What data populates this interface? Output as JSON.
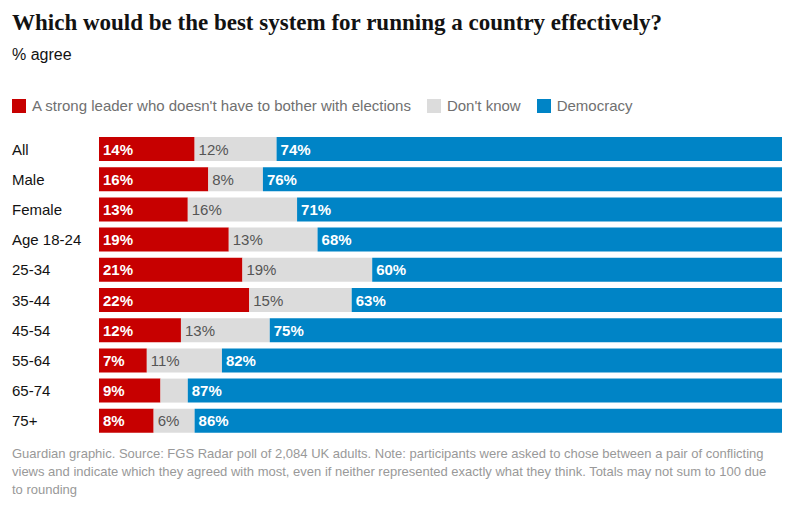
{
  "chart_data": {
    "type": "bar",
    "title": "Which would be the best system for running a country effectively?",
    "subtitle": "% agree",
    "caption": "Guardian graphic. Source: FGS Radar poll of 2,084 UK adults. Note: participants were asked to chose between a pair of conflicting views and indicate which they agreed with most, even if neither represented exactly what they think. Totals may not sum to 100 due to rounding",
    "orientation": "horizontal",
    "stacked": true,
    "data_labels": true,
    "tick_labels": "y",
    "grid": false,
    "legend": "top-left",
    "categories": [
      "All",
      "Male",
      "Female",
      "Age 18-24",
      "25-34",
      "35-44",
      "45-54",
      "55-64",
      "65-74",
      "75+"
    ],
    "series": [
      {
        "name": "A strong leader who doesn't have to bother with elections",
        "color": "#c70000",
        "values": [
          14,
          16,
          13,
          19,
          21,
          22,
          12,
          7,
          9,
          8
        ],
        "value_labels": [
          "14%",
          "16%",
          "13%",
          "19%",
          "21%",
          "22%",
          "12%",
          "7%",
          "9%",
          "8%"
        ]
      },
      {
        "name": "Don't know",
        "color": "#dcdcdc",
        "values": [
          12,
          8,
          16,
          13,
          19,
          15,
          13,
          11,
          4,
          6
        ],
        "value_labels": [
          "12%",
          "8%",
          "16%",
          "13%",
          "19%",
          "15%",
          "13%",
          "11%",
          null,
          "6%"
        ]
      },
      {
        "name": "Democracy",
        "color": "#0084c6",
        "values": [
          74,
          76,
          71,
          68,
          60,
          63,
          75,
          82,
          87,
          86
        ],
        "value_labels": [
          "74%",
          "76%",
          "71%",
          "68%",
          "60%",
          "63%",
          "75%",
          "82%",
          "87%",
          "86%"
        ]
      }
    ]
  }
}
